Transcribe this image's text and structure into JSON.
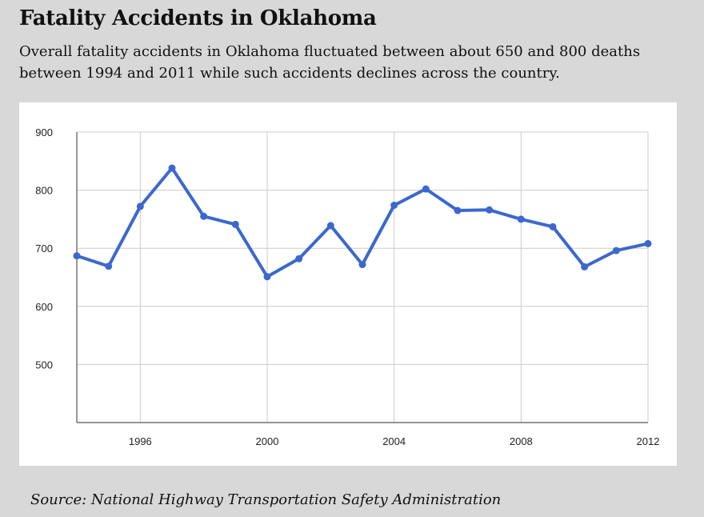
{
  "header": {
    "title": "Fatality Accidents in Oklahoma",
    "subtitle": "Overall fatality accidents in Oklahoma fluctuated between about 650 and 800 deaths between 1994 and 2011 while such accidents declines across the country."
  },
  "footer": {
    "source": "Source: National Highway Transportation Safety Administration"
  },
  "colors": {
    "line": "#3c68cd",
    "grid": "#cccccc",
    "axis": "#555555",
    "tick_text": "#222222"
  },
  "chart_data": {
    "type": "line",
    "xlim": [
      1994,
      2012
    ],
    "ylim": [
      400,
      900
    ],
    "x_ticks": [
      1996,
      2000,
      2004,
      2008,
      2012
    ],
    "y_ticks": [
      500,
      600,
      700,
      800,
      900
    ],
    "grid": true,
    "legend": "none",
    "series": [
      {
        "x": [
          1994,
          1995,
          1996,
          1997,
          1998,
          1999,
          2000,
          2001,
          2002,
          2003,
          2004,
          2005,
          2006,
          2007,
          2008,
          2009,
          2010,
          2011,
          2012
        ],
        "values": [
          687,
          669,
          772,
          838,
          755,
          741,
          651,
          682,
          739,
          672,
          774,
          802,
          765,
          766,
          750,
          737,
          668,
          696,
          708
        ]
      }
    ]
  }
}
